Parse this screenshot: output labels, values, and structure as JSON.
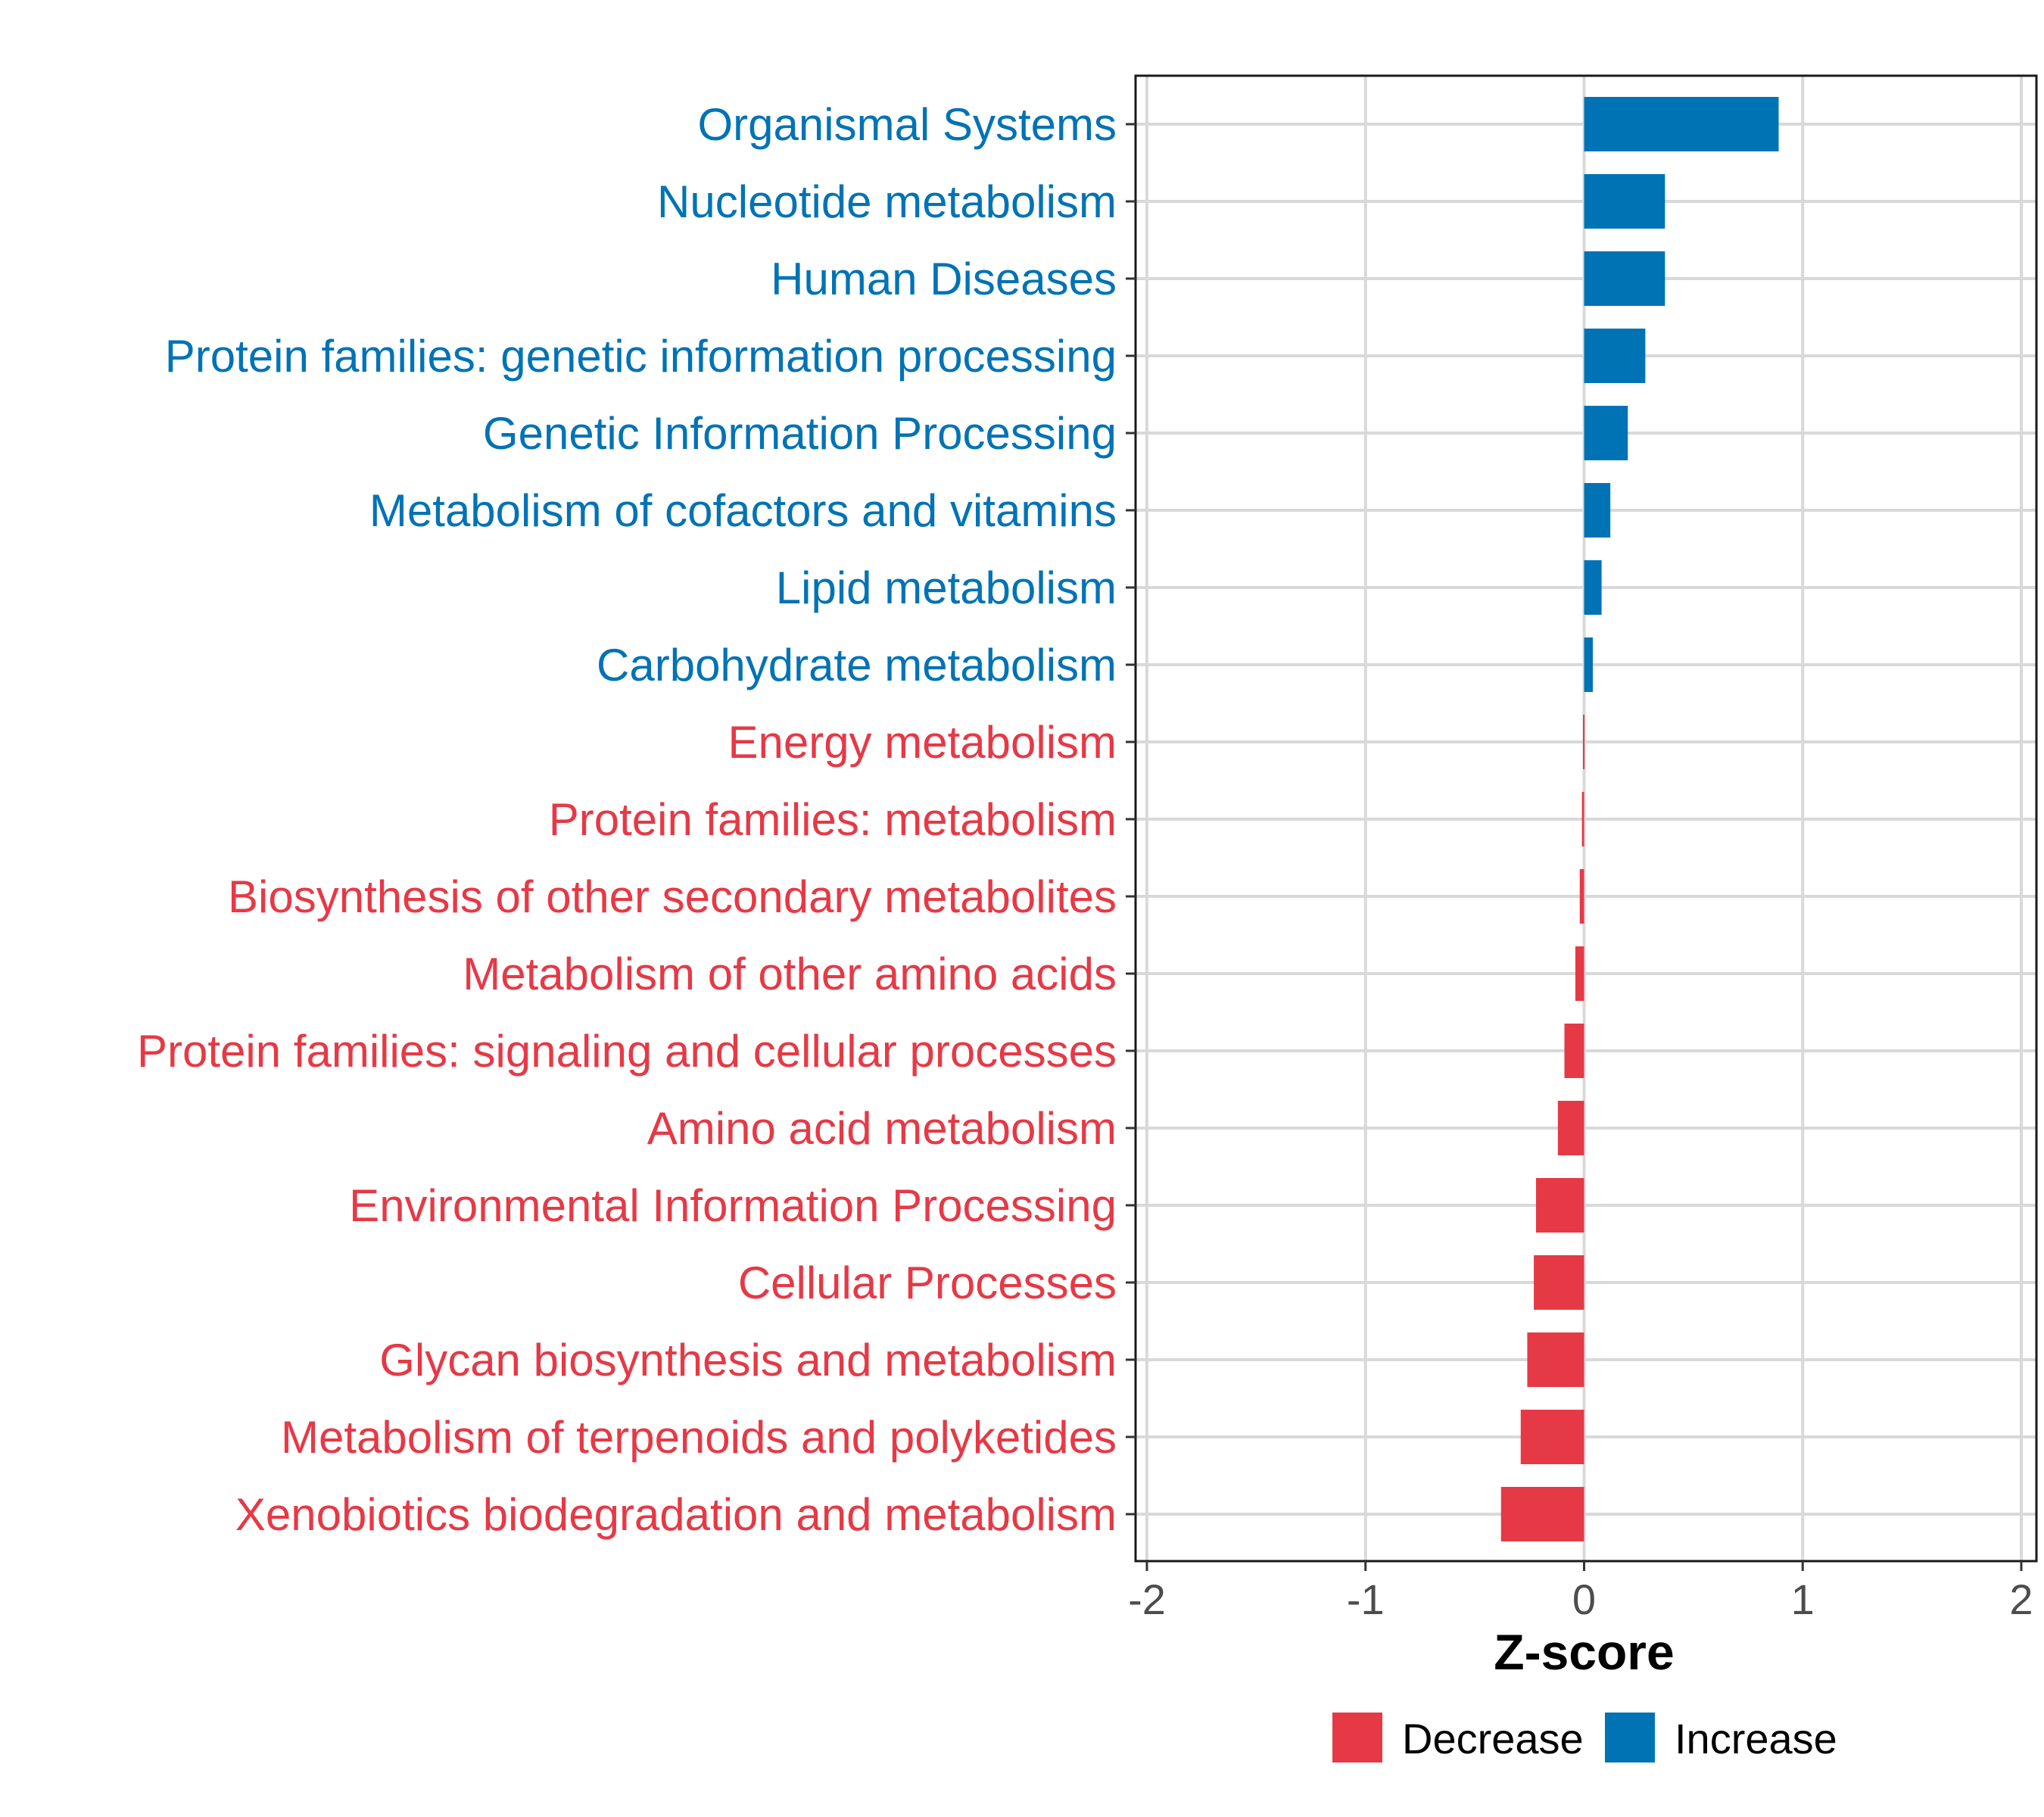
{
  "chart_data": {
    "type": "bar",
    "orientation": "horizontal",
    "xlabel": "Z-score",
    "ylabel": "",
    "xlim": [
      -2,
      2
    ],
    "xticks": [
      -2,
      -1,
      0,
      1,
      2
    ],
    "grid": true,
    "legend_position": "bottom",
    "colors": {
      "Increase": "#0073b5",
      "Decrease": "#e63946",
      "grid": "#d9d9d9"
    },
    "categories": [
      "Organismal Systems",
      "Nucleotide metabolism",
      "Human Diseases",
      "Protein families: genetic information processing",
      "Genetic Information Processing",
      "Metabolism of cofactors and vitamins",
      "Lipid metabolism",
      "Carbohydrate metabolism",
      "Energy metabolism",
      "Protein families: metabolism",
      "Biosynthesis of other secondary metabolites",
      "Metabolism of other amino acids",
      "Protein families: signaling and cellular processes",
      "Amino acid metabolism",
      "Environmental Information Processing",
      "Cellular Processes",
      "Glycan biosynthesis and metabolism",
      "Metabolism of terpenoids and polyketides",
      "Xenobiotics biodegradation and metabolism"
    ],
    "values": [
      0.89,
      0.37,
      0.37,
      0.28,
      0.2,
      0.12,
      0.08,
      0.04,
      -0.005,
      -0.01,
      -0.02,
      -0.04,
      -0.09,
      -0.12,
      -0.22,
      -0.23,
      -0.26,
      -0.29,
      -0.38
    ],
    "groups": [
      "Increase",
      "Increase",
      "Increase",
      "Increase",
      "Increase",
      "Increase",
      "Increase",
      "Increase",
      "Decrease",
      "Decrease",
      "Decrease",
      "Decrease",
      "Decrease",
      "Decrease",
      "Decrease",
      "Decrease",
      "Decrease",
      "Decrease",
      "Decrease"
    ],
    "legend": [
      {
        "label": "Decrease",
        "color": "#e63946"
      },
      {
        "label": "Increase",
        "color": "#0073b5"
      }
    ]
  }
}
